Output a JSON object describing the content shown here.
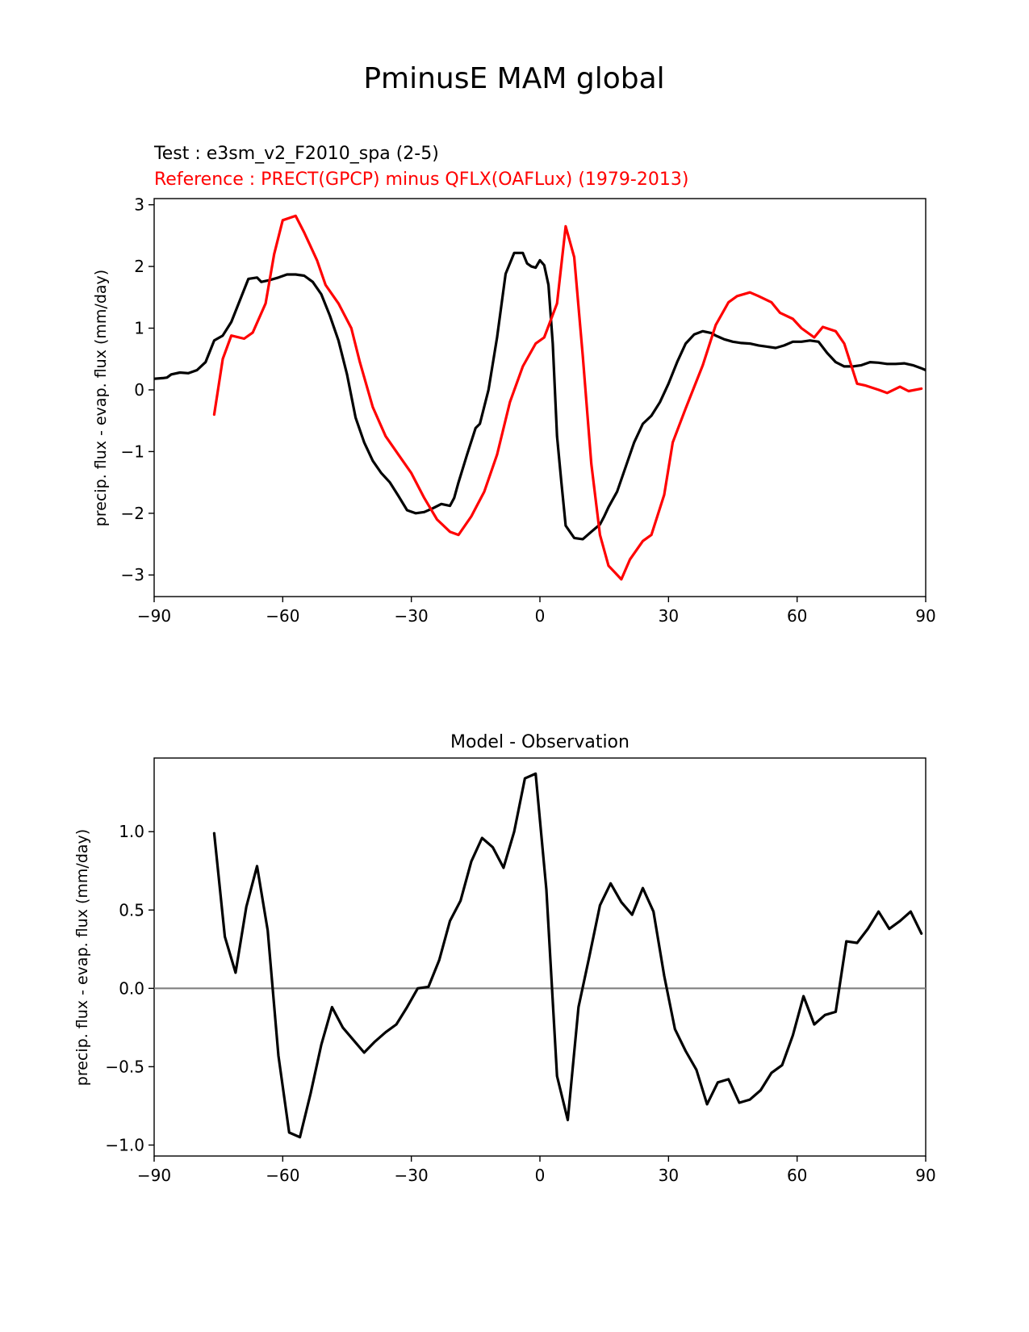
{
  "title": "PminusE MAM global",
  "chart_data": [
    {
      "type": "line",
      "title_test": "Test : e3sm_v2_F2010_spa (2-5)",
      "title_reference": "Reference : PRECT(GPCP) minus QFLX(OAFLux) (1979-2013)",
      "xlabel": "",
      "ylabel": "precip. flux - evap. flux (mm/day)",
      "xlim": [
        -90,
        90
      ],
      "ylim": [
        -3.35,
        3.1
      ],
      "xticks": [
        -90,
        -60,
        -30,
        0,
        30,
        60,
        90
      ],
      "xtick_labels": [
        "−90",
        "−60",
        "−30",
        "0",
        "30",
        "60",
        "90"
      ],
      "yticks": [
        -3,
        -2,
        -1,
        0,
        1,
        2,
        3
      ],
      "ytick_labels": [
        "−3",
        "−2",
        "−1",
        "0",
        "1",
        "2",
        "3"
      ],
      "series": [
        {
          "name": "Test",
          "color": "#000000",
          "x": [
            -90,
            -88,
            -87,
            -86,
            -84,
            -82,
            -80,
            -78,
            -76,
            -74,
            -72,
            -70,
            -68,
            -66,
            -65,
            -63,
            -61,
            -59,
            -57,
            -55,
            -53,
            -51,
            -49,
            -47,
            -45,
            -43,
            -41,
            -39,
            -37,
            -35,
            -33,
            -31,
            -29,
            -27,
            -25,
            -23,
            -21,
            -20,
            -19,
            -17,
            -15,
            -14,
            -12,
            -10,
            -8,
            -6,
            -4,
            -3,
            -2,
            -1,
            0,
            1,
            2,
            3,
            4,
            5,
            6,
            8,
            10,
            12,
            14,
            15,
            16,
            18,
            20,
            22,
            24,
            26,
            28,
            30,
            32,
            34,
            36,
            38,
            40,
            41,
            42,
            43,
            45,
            47,
            49,
            51,
            53,
            55,
            57,
            59,
            61,
            63,
            65,
            67,
            69,
            71,
            73,
            75,
            77,
            79,
            81,
            83,
            85,
            87,
            89,
            90
          ],
          "y": [
            0.18,
            0.19,
            0.2,
            0.25,
            0.28,
            0.27,
            0.32,
            0.45,
            0.8,
            0.88,
            1.1,
            1.45,
            1.8,
            1.82,
            1.75,
            1.78,
            1.82,
            1.87,
            1.87,
            1.85,
            1.75,
            1.55,
            1.2,
            0.8,
            0.25,
            -0.45,
            -0.85,
            -1.15,
            -1.35,
            -1.5,
            -1.72,
            -1.95,
            -2.0,
            -1.98,
            -1.92,
            -1.85,
            -1.88,
            -1.75,
            -1.5,
            -1.05,
            -0.62,
            -0.55,
            0.0,
            0.85,
            1.88,
            2.22,
            2.22,
            2.05,
            2.0,
            1.98,
            2.1,
            2.02,
            1.7,
            0.75,
            -0.75,
            -1.5,
            -2.2,
            -2.4,
            -2.42,
            -2.3,
            -2.18,
            -2.05,
            -1.9,
            -1.65,
            -1.25,
            -0.85,
            -0.55,
            -0.42,
            -0.2,
            0.1,
            0.45,
            0.75,
            0.9,
            0.95,
            0.92,
            0.88,
            0.85,
            0.82,
            0.78,
            0.76,
            0.75,
            0.72,
            0.7,
            0.68,
            0.72,
            0.78,
            0.78,
            0.8,
            0.78,
            0.6,
            0.45,
            0.38,
            0.38,
            0.4,
            0.45,
            0.44,
            0.42,
            0.42,
            0.43,
            0.4,
            0.35,
            0.32
          ]
        },
        {
          "name": "Reference",
          "color": "#ff0000",
          "x": [
            -76,
            -74,
            -72,
            -69,
            -67,
            -64,
            -62,
            -60,
            -57,
            -55,
            -52,
            -50,
            -47,
            -44,
            -42,
            -39,
            -36,
            -33,
            -30,
            -27,
            -24,
            -21,
            -19,
            -16,
            -13,
            -10,
            -7,
            -4,
            -1,
            1,
            4,
            6,
            8,
            10,
            12,
            14,
            16,
            19,
            21,
            24,
            26,
            29,
            31,
            34,
            36,
            38,
            41,
            44,
            46,
            49,
            51,
            54,
            56,
            59,
            61,
            64,
            66,
            69,
            71,
            74,
            76,
            79,
            81,
            84,
            86,
            89
          ],
          "y": [
            -0.4,
            0.5,
            0.88,
            0.83,
            0.93,
            1.4,
            2.2,
            2.75,
            2.82,
            2.55,
            2.1,
            1.7,
            1.4,
            1.0,
            0.45,
            -0.28,
            -0.75,
            -1.05,
            -1.35,
            -1.75,
            -2.1,
            -2.3,
            -2.35,
            -2.05,
            -1.65,
            -1.05,
            -0.2,
            0.38,
            0.75,
            0.85,
            1.4,
            2.65,
            2.15,
            0.55,
            -1.2,
            -2.35,
            -2.85,
            -3.07,
            -2.75,
            -2.45,
            -2.35,
            -1.7,
            -0.85,
            -0.3,
            0.05,
            0.4,
            1.05,
            1.42,
            1.52,
            1.58,
            1.52,
            1.42,
            1.25,
            1.15,
            1.0,
            0.85,
            1.02,
            0.95,
            0.75,
            0.1,
            0.07,
            0.0,
            -0.05,
            0.05,
            -0.02,
            0.02
          ]
        }
      ]
    },
    {
      "type": "line",
      "title": "Model - Observation",
      "xlabel": "",
      "ylabel": "precip. flux - evap. flux (mm/day)",
      "xlim": [
        -90,
        90
      ],
      "ylim": [
        -1.07,
        1.47
      ],
      "xticks": [
        -90,
        -60,
        -30,
        0,
        30,
        60,
        90
      ],
      "xtick_labels": [
        "−90",
        "−60",
        "−30",
        "0",
        "30",
        "60",
        "90"
      ],
      "yticks": [
        -1.0,
        -0.5,
        0.0,
        0.5,
        1.0
      ],
      "ytick_labels": [
        "−1.0",
        "−0.5",
        "0.0",
        "0.5",
        "1.0"
      ],
      "zero_line_color": "#808080",
      "series": [
        {
          "name": "Model - Observation",
          "color": "#000000",
          "x": [
            -76,
            -73.5,
            -71,
            -68.5,
            -66,
            -63.5,
            -61,
            -58.5,
            -56,
            -53.5,
            -51,
            -48.5,
            -46,
            -43.5,
            -41,
            -38.5,
            -36,
            -33.5,
            -31,
            -28.5,
            -26,
            -23.5,
            -21,
            -18.5,
            -16,
            -13.5,
            -11,
            -8.5,
            -6,
            -3.5,
            -1,
            1.5,
            4,
            6.5,
            9,
            11.5,
            14,
            16.5,
            19,
            21.5,
            24,
            26.5,
            29,
            31.5,
            34,
            36.5,
            39,
            41.5,
            44,
            46.5,
            49,
            51.5,
            54,
            56.5,
            59,
            61.5,
            64,
            66.5,
            69,
            71.5,
            74,
            76.5,
            79,
            81.5,
            84,
            86.5,
            89
          ],
          "y": [
            0.99,
            0.33,
            0.1,
            0.52,
            0.78,
            0.37,
            -0.43,
            -0.92,
            -0.95,
            -0.67,
            -0.36,
            -0.12,
            -0.25,
            -0.33,
            -0.41,
            -0.34,
            -0.28,
            -0.23,
            -0.12,
            0.0,
            0.01,
            0.18,
            0.43,
            0.56,
            0.81,
            0.96,
            0.9,
            0.77,
            1.0,
            1.34,
            1.37,
            0.63,
            -0.56,
            -0.84,
            -0.12,
            0.2,
            0.53,
            0.67,
            0.55,
            0.47,
            0.64,
            0.49,
            0.08,
            -0.26,
            -0.4,
            -0.52,
            -0.74,
            -0.6,
            -0.58,
            -0.73,
            -0.71,
            -0.65,
            -0.54,
            -0.49,
            -0.3,
            -0.05,
            -0.23,
            -0.17,
            -0.15,
            0.3,
            0.29,
            0.38,
            0.49,
            0.38,
            0.43,
            0.49,
            0.35
          ]
        }
      ]
    }
  ]
}
